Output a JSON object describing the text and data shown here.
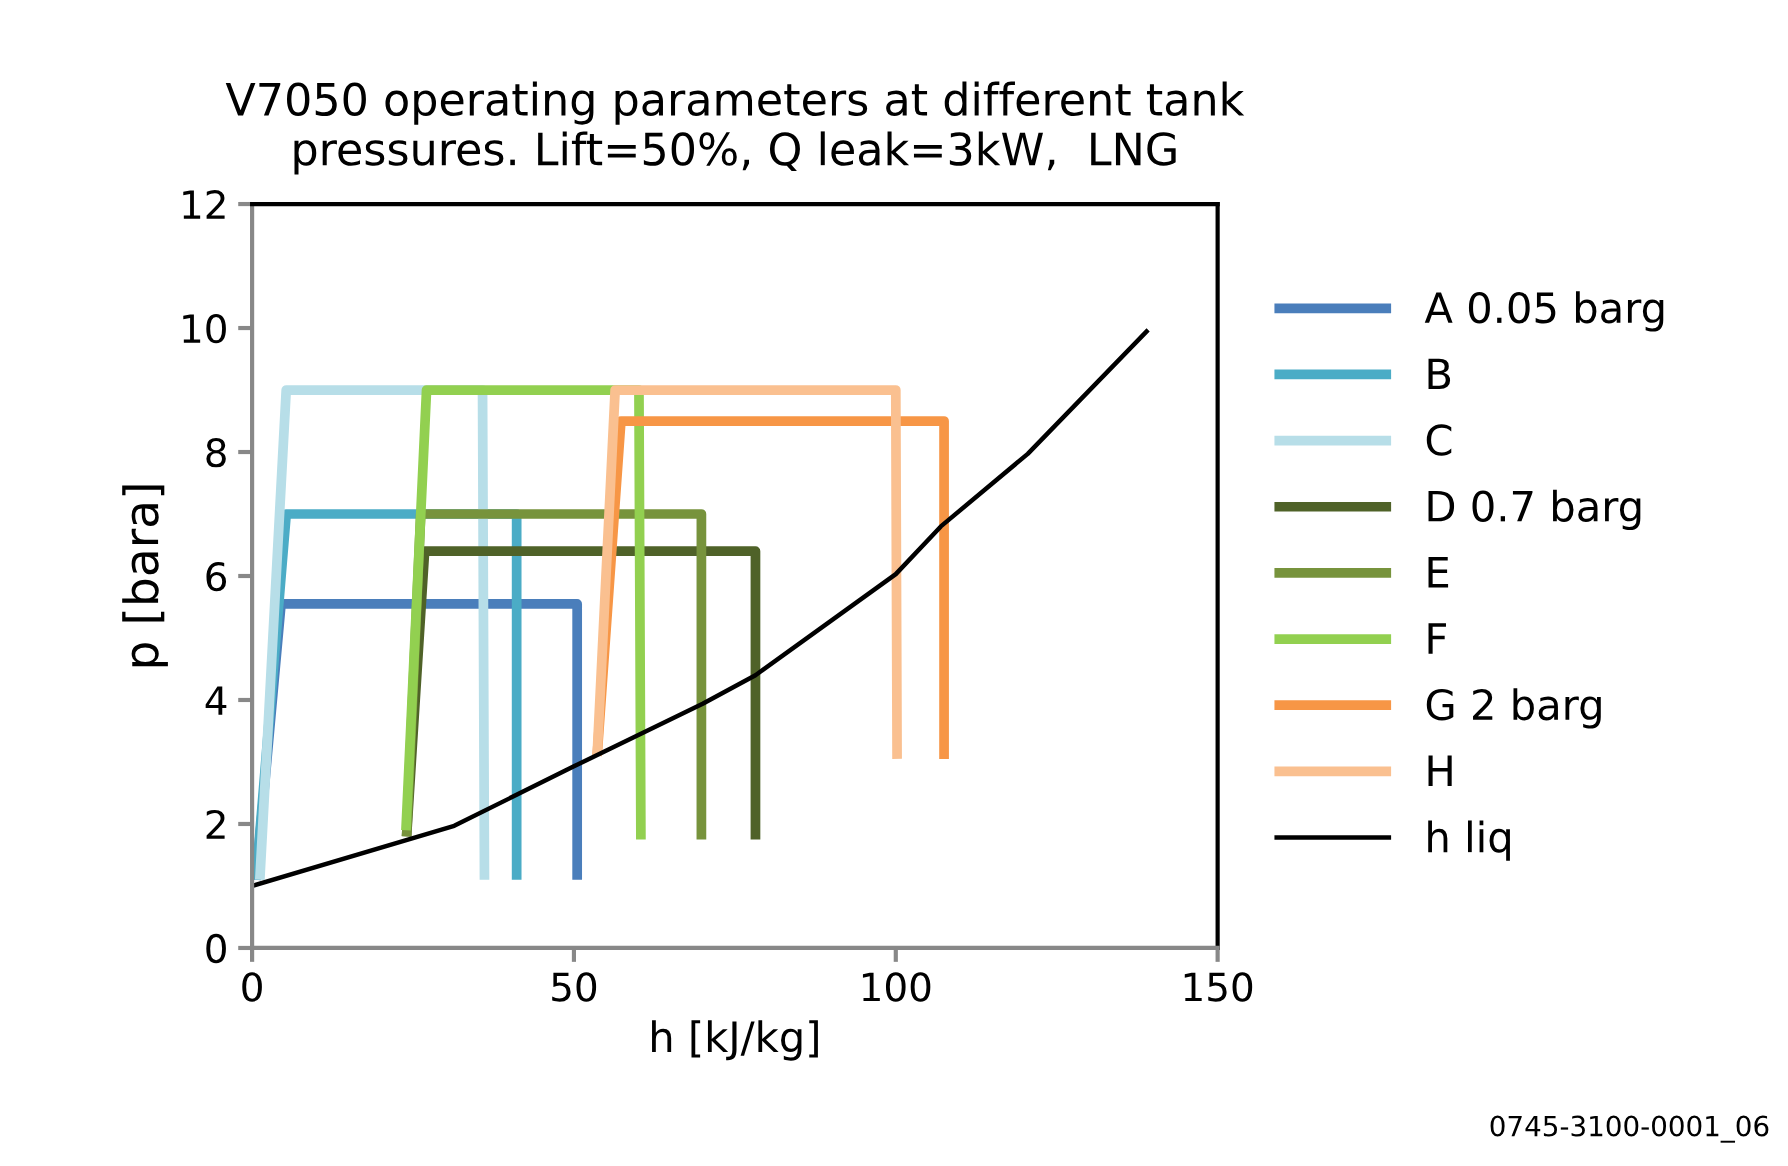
{
  "chart_data": {
    "type": "line",
    "title": "V7050 operating parameters at different tank\npressures. Lift=50%, Q leak=3kW,  LNG",
    "xlabel": "h [kJ/kg]",
    "ylabel": "p [bara]",
    "xlim": [
      0,
      150
    ],
    "xticks": [
      0,
      50,
      100,
      150
    ],
    "ylim": [
      0,
      12
    ],
    "yticks": [
      0,
      2,
      4,
      6,
      8,
      10,
      12
    ],
    "grid": false,
    "legend": "right",
    "marker": "none",
    "line_style": "solid",
    "series": [
      {
        "name": "A 0.05 barg",
        "color": "#4a7ebb",
        "x": [
          0.6,
          4.5,
          50.5,
          50.5
        ],
        "values": [
          1.1,
          5.55,
          5.55,
          1.1
        ]
      },
      {
        "name": "B",
        "color": "#4bacc6",
        "x": [
          0.6,
          5.3,
          41.1,
          41.1
        ],
        "values": [
          1.1,
          7.0,
          7.0,
          1.1
        ]
      },
      {
        "name": "C",
        "color": "#b7dee8",
        "x": [
          1.2,
          5.3,
          35.8,
          36.1
        ],
        "values": [
          1.1,
          9.0,
          9.0,
          1.1
        ]
      },
      {
        "name": "D 0.7 barg",
        "color": "#4f6228",
        "x": [
          24.0,
          26.8,
          78.2,
          78.2
        ],
        "values": [
          1.8,
          6.4,
          6.4,
          1.75
        ]
      },
      {
        "name": "E",
        "color": "#77933c",
        "x": [
          24.0,
          26.2,
          69.8,
          69.8
        ],
        "values": [
          1.8,
          7.0,
          7.0,
          1.75
        ]
      },
      {
        "name": "F",
        "color": "#92d050",
        "x": [
          23.9,
          27.1,
          60.1,
          60.4
        ],
        "values": [
          1.9,
          9.0,
          9.0,
          1.75
        ]
      },
      {
        "name": "G 2 barg",
        "color": "#f79646",
        "x": [
          53.6,
          57.3,
          107.5,
          107.5
        ],
        "values": [
          3.1,
          8.5,
          8.5,
          3.05
        ]
      },
      {
        "name": "H",
        "color": "#fac090",
        "x": [
          53.6,
          56.4,
          100.0,
          100.2
        ],
        "values": [
          3.1,
          9.0,
          9.0,
          3.05
        ]
      },
      {
        "name": "h liq",
        "color": "#000000",
        "x": [
          0,
          31.4,
          50,
          70,
          78.2,
          100,
          107,
          120.5,
          139.2
        ],
        "values": [
          1.0,
          1.97,
          2.93,
          3.94,
          4.4,
          6.03,
          6.8,
          7.97,
          9.97
        ]
      }
    ],
    "annotations": [
      "0745-3100-0001_06"
    ]
  }
}
